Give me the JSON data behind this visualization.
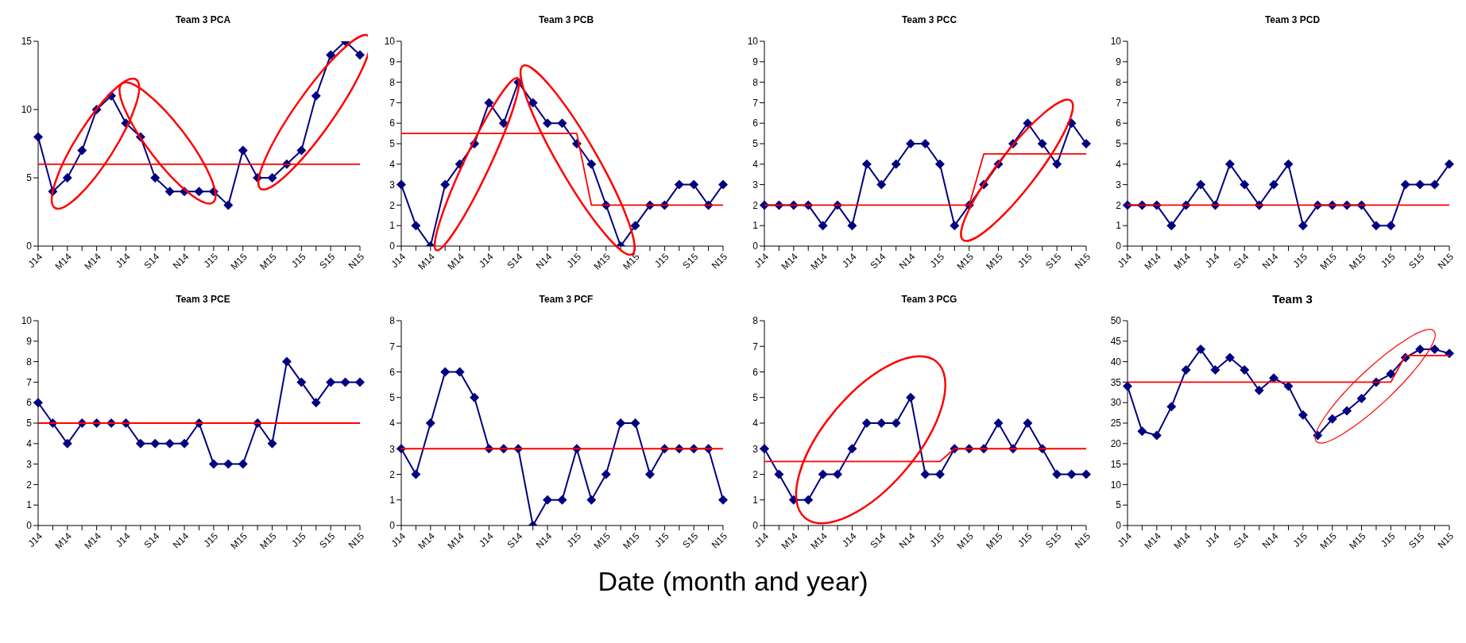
{
  "chart_data": [
    {
      "type": "line",
      "title": "Team 3 PCA",
      "categories": [
        "J14",
        null,
        "M14",
        null,
        "M14",
        null,
        "J14",
        null,
        "S14",
        null,
        "N14",
        null,
        "J15",
        null,
        "M15",
        null,
        "M15",
        null,
        "J15",
        null,
        "S15",
        null,
        "N15"
      ],
      "ylim": [
        0,
        15
      ],
      "yticks": [
        0,
        5,
        10,
        15
      ],
      "series": [
        {
          "color": "#000080",
          "marker": "diamond",
          "values": [
            8,
            4,
            5,
            7,
            10,
            11,
            9,
            8,
            5,
            4,
            4,
            4,
            4,
            3,
            7,
            5,
            5,
            6,
            7,
            11,
            14,
            15,
            14
          ]
        },
        {
          "color": "#ff0000",
          "marker": "none",
          "values": [
            6,
            6,
            6,
            6,
            6,
            6,
            6,
            6,
            6,
            6,
            6,
            6,
            6,
            6,
            6,
            6,
            6,
            6,
            6,
            6,
            6,
            6,
            6
          ]
        }
      ]
    },
    {
      "type": "line",
      "title": "Team 3 PCB",
      "categories": [
        "J14",
        null,
        "M14",
        null,
        "M14",
        null,
        "J14",
        null,
        "S14",
        null,
        "N14",
        null,
        "J15",
        null,
        "M15",
        null,
        "M15",
        null,
        "J15",
        null,
        "S15",
        null,
        "N15"
      ],
      "ylim": [
        0,
        10
      ],
      "yticks": [
        0,
        1,
        2,
        3,
        4,
        5,
        6,
        7,
        8,
        9,
        10
      ],
      "series": [
        {
          "color": "#000080",
          "marker": "diamond",
          "values": [
            3,
            1,
            0,
            3,
            4,
            5,
            7,
            6,
            8,
            7,
            6,
            6,
            5,
            4,
            2,
            0,
            1,
            2,
            2,
            3,
            3,
            2,
            3
          ]
        },
        {
          "color": "#ff0000",
          "marker": "none",
          "values": [
            5.5,
            5.5,
            5.5,
            5.5,
            5.5,
            5.5,
            5.5,
            5.5,
            5.5,
            5.5,
            5.5,
            5.5,
            5.5,
            2,
            2,
            2,
            2,
            2,
            2,
            2,
            2,
            2,
            2
          ]
        }
      ]
    },
    {
      "type": "line",
      "title": "Team 3 PCC",
      "categories": [
        "J14",
        null,
        "M14",
        null,
        "M14",
        null,
        "J14",
        null,
        "S14",
        null,
        "N14",
        null,
        "J15",
        null,
        "M15",
        null,
        "M15",
        null,
        "J15",
        null,
        "S15",
        null,
        "N15"
      ],
      "ylim": [
        0,
        10
      ],
      "yticks": [
        0,
        1,
        2,
        3,
        4,
        5,
        6,
        7,
        8,
        9,
        10
      ],
      "series": [
        {
          "color": "#000080",
          "marker": "diamond",
          "values": [
            2,
            2,
            2,
            2,
            1,
            2,
            1,
            4,
            3,
            4,
            5,
            5,
            4,
            1,
            2,
            3,
            4,
            5,
            6,
            5,
            4,
            6,
            5
          ]
        },
        {
          "color": "#ff0000",
          "marker": "none",
          "values": [
            2,
            2,
            2,
            2,
            2,
            2,
            2,
            2,
            2,
            2,
            2,
            2,
            2,
            2,
            2,
            4.5,
            4.5,
            4.5,
            4.5,
            4.5,
            4.5,
            4.5,
            4.5
          ]
        }
      ]
    },
    {
      "type": "line",
      "title": "Team 3 PCD",
      "categories": [
        "J14",
        null,
        "M14",
        null,
        "M14",
        null,
        "J14",
        null,
        "S14",
        null,
        "N14",
        null,
        "J15",
        null,
        "M15",
        null,
        "M15",
        null,
        "J15",
        null,
        "S15",
        null,
        "N15"
      ],
      "ylim": [
        0,
        10
      ],
      "yticks": [
        0,
        1,
        2,
        3,
        4,
        5,
        6,
        7,
        8,
        9,
        10
      ],
      "series": [
        {
          "color": "#000080",
          "marker": "diamond",
          "values": [
            2,
            2,
            2,
            1,
            2,
            3,
            2,
            4,
            3,
            2,
            3,
            4,
            1,
            2,
            2,
            2,
            2,
            1,
            1,
            3,
            3,
            3,
            4
          ]
        },
        {
          "color": "#ff0000",
          "marker": "none",
          "values": [
            2,
            2,
            2,
            2,
            2,
            2,
            2,
            2,
            2,
            2,
            2,
            2,
            2,
            2,
            2,
            2,
            2,
            2,
            2,
            2,
            2,
            2,
            2
          ]
        }
      ]
    },
    {
      "type": "line",
      "title": "Team 3 PCE",
      "categories": [
        "J14",
        null,
        "M14",
        null,
        "M14",
        null,
        "J14",
        null,
        "S14",
        null,
        "N14",
        null,
        "J15",
        null,
        "M15",
        null,
        "M15",
        null,
        "J15",
        null,
        "S15",
        null,
        "N15"
      ],
      "ylim": [
        0,
        10
      ],
      "yticks": [
        0,
        1,
        2,
        3,
        4,
        5,
        6,
        7,
        8,
        9,
        10
      ],
      "series": [
        {
          "color": "#000080",
          "marker": "diamond",
          "values": [
            6,
            5,
            4,
            5,
            5,
            5,
            5,
            4,
            4,
            4,
            4,
            5,
            3,
            3,
            3,
            5,
            4,
            8,
            7,
            6,
            7,
            7,
            7
          ]
        },
        {
          "color": "#ff0000",
          "marker": "none",
          "values": [
            5,
            5,
            5,
            5,
            5,
            5,
            5,
            5,
            5,
            5,
            5,
            5,
            5,
            5,
            5,
            5,
            5,
            5,
            5,
            5,
            5,
            5,
            5
          ]
        }
      ]
    },
    {
      "type": "line",
      "title": "Team 3 PCF",
      "categories": [
        "J14",
        null,
        "M14",
        null,
        "M14",
        null,
        "J14",
        null,
        "S14",
        null,
        "N14",
        null,
        "J15",
        null,
        "M15",
        null,
        "M15",
        null,
        "J15",
        null,
        "S15",
        null,
        "N15"
      ],
      "ylim": [
        0,
        8
      ],
      "yticks": [
        0,
        1,
        2,
        3,
        4,
        5,
        6,
        7,
        8
      ],
      "series": [
        {
          "color": "#000080",
          "marker": "diamond",
          "values": [
            3,
            2,
            4,
            6,
            6,
            5,
            3,
            3,
            3,
            0,
            1,
            1,
            3,
            1,
            2,
            4,
            4,
            2,
            3,
            3,
            3,
            3,
            1
          ]
        },
        {
          "color": "#ff0000",
          "marker": "none",
          "values": [
            3,
            3,
            3,
            3,
            3,
            3,
            3,
            3,
            3,
            3,
            3,
            3,
            3,
            3,
            3,
            3,
            3,
            3,
            3,
            3,
            3,
            3,
            3
          ]
        }
      ]
    },
    {
      "type": "line",
      "title": "Team 3 PCG",
      "categories": [
        "J14",
        null,
        "M14",
        null,
        "M14",
        null,
        "J14",
        null,
        "S14",
        null,
        "N14",
        null,
        "J15",
        null,
        "M15",
        null,
        "M15",
        null,
        "J15",
        null,
        "S15",
        null,
        "N15"
      ],
      "ylim": [
        0,
        8
      ],
      "yticks": [
        0,
        1,
        2,
        3,
        4,
        5,
        6,
        7,
        8
      ],
      "series": [
        {
          "color": "#000080",
          "marker": "diamond",
          "values": [
            3,
            2,
            1,
            1,
            2,
            2,
            3,
            4,
            4,
            4,
            5,
            2,
            2,
            3,
            3,
            3,
            4,
            3,
            4,
            3,
            2,
            2,
            2
          ]
        },
        {
          "color": "#ff0000",
          "marker": "none",
          "values": [
            2.5,
            2.5,
            2.5,
            2.5,
            2.5,
            2.5,
            2.5,
            2.5,
            2.5,
            2.5,
            2.5,
            2.5,
            2.5,
            3,
            3,
            3,
            3,
            3,
            3,
            3,
            3,
            3,
            3
          ]
        }
      ]
    },
    {
      "type": "line",
      "title": "Team 3",
      "categories": [
        "J14",
        null,
        "M14",
        null,
        "M14",
        null,
        "J14",
        null,
        "S14",
        null,
        "N14",
        null,
        "J15",
        null,
        "M15",
        null,
        "M15",
        null,
        "J15",
        null,
        "S15",
        null,
        "N15"
      ],
      "ylim": [
        0,
        50
      ],
      "yticks": [
        0,
        5,
        10,
        15,
        20,
        25,
        30,
        35,
        40,
        45,
        50
      ],
      "annotations": [
        "Date (month and year)"
      ],
      "series": [
        {
          "color": "#000080",
          "marker": "diamond",
          "values": [
            34,
            23,
            22,
            29,
            38,
            43,
            38,
            41,
            38,
            33,
            36,
            34,
            27,
            22,
            26,
            28,
            31,
            35,
            37,
            41,
            43,
            43,
            42
          ]
        },
        {
          "color": "#ff0000",
          "marker": "none",
          "values": [
            35,
            35,
            35,
            35,
            35,
            35,
            35,
            35,
            35,
            35,
            35,
            35,
            35,
            35,
            35,
            35,
            35,
            35,
            35,
            41.5,
            41.5,
            41.5,
            41.5
          ]
        }
      ]
    }
  ]
}
